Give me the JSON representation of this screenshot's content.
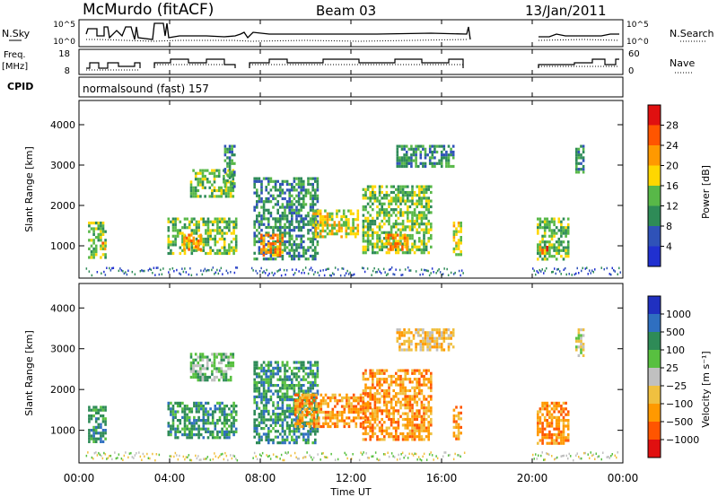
{
  "header": {
    "station": "McMurdo (fitACF)",
    "beam": "Beam 03",
    "date": "13/Jan/2011"
  },
  "sky_panel": {
    "left_label": "N.Sky",
    "right_label": "N.Search",
    "left_ticks": [
      "10^5",
      "10^0"
    ],
    "right_ticks": [
      "10^5",
      "10^0"
    ]
  },
  "freq_panel": {
    "left_label_line1": "Freq.",
    "left_label_line2": "[MHz]",
    "right_label": "Nave",
    "left_ticks": [
      "18",
      "8"
    ],
    "right_ticks": [
      "60",
      "0"
    ]
  },
  "cpid": {
    "label": "CPID",
    "program": "normalsound (fast) 157"
  },
  "colors": {
    "power": [
      "#2030d0",
      "#2f52b8",
      "#2e8b57",
      "#58b848",
      "#ffd700",
      "#ff9900",
      "#ff5500",
      "#e01010"
    ],
    "velocity": [
      "#e01010",
      "#ff5500",
      "#ff9900",
      "#f0c040",
      "#c0c0c0",
      "#58c040",
      "#2e8b57",
      "#2f6fc0",
      "#2030c0"
    ]
  },
  "chart_data": [
    {
      "type": "heatmap",
      "name": "power",
      "ylabel": "Slant Range [km]",
      "yticks": [
        "1000",
        "2000",
        "3000",
        "4000"
      ],
      "ylim": [
        200,
        4600
      ],
      "xlim": [
        0,
        24
      ],
      "xticks": [
        "00:00",
        "04:00",
        "08:00",
        "12:00",
        "16:00",
        "20:00",
        "00:00"
      ],
      "colorbar_label": "Power [dB]",
      "colorbar_ticks": [
        "4",
        "8",
        "12",
        "16",
        "20",
        "24",
        "28"
      ],
      "colorbar_range": [
        0,
        32
      ],
      "regions": [
        {
          "t0": 0.4,
          "t1": 1.2,
          "r0": 700,
          "r1": 1600,
          "level": 3
        },
        {
          "t0": 1.0,
          "t1": 1.2,
          "r0": 900,
          "r1": 1100,
          "level": 5
        },
        {
          "t0": 3.9,
          "t1": 6.9,
          "r0": 800,
          "r1": 1700,
          "level": 3
        },
        {
          "t0": 4.6,
          "t1": 5.4,
          "r0": 900,
          "r1": 1300,
          "level": 5
        },
        {
          "t0": 4.9,
          "t1": 6.8,
          "r0": 2200,
          "r1": 2900,
          "level": 3
        },
        {
          "t0": 6.4,
          "t1": 6.9,
          "r0": 2500,
          "r1": 3500,
          "level": 2
        },
        {
          "t0": 7.7,
          "t1": 10.5,
          "r0": 700,
          "r1": 2700,
          "level": 2
        },
        {
          "t0": 8.0,
          "t1": 9.0,
          "r0": 800,
          "r1": 1300,
          "level": 5
        },
        {
          "t0": 10.3,
          "t1": 12.3,
          "r0": 1200,
          "r1": 1900,
          "level": 4
        },
        {
          "t0": 12.5,
          "t1": 15.5,
          "r0": 800,
          "r1": 2500,
          "level": 3
        },
        {
          "t0": 13.5,
          "t1": 14.5,
          "r0": 900,
          "r1": 1300,
          "level": 5
        },
        {
          "t0": 14.0,
          "t1": 16.5,
          "r0": 3000,
          "r1": 3500,
          "level": 2
        },
        {
          "t0": 16.5,
          "t1": 16.9,
          "r0": 800,
          "r1": 1600,
          "level": 4
        },
        {
          "t0": 20.2,
          "t1": 21.6,
          "r0": 700,
          "r1": 1700,
          "level": 3
        },
        {
          "t0": 20.3,
          "t1": 20.7,
          "r0": 800,
          "r1": 1000,
          "level": 6
        },
        {
          "t0": 21.9,
          "t1": 22.3,
          "r0": 2800,
          "r1": 3500,
          "level": 2
        }
      ]
    },
    {
      "type": "heatmap",
      "name": "velocity",
      "ylabel": "Slant Range [km]",
      "yticks": [
        "1000",
        "2000",
        "3000",
        "4000"
      ],
      "ylim": [
        200,
        4600
      ],
      "xlim": [
        0,
        24
      ],
      "xticks": [
        "00:00",
        "04:00",
        "08:00",
        "12:00",
        "16:00",
        "20:00",
        "00:00"
      ],
      "xlabel": "Time UT",
      "colorbar_label": "Velocity [m s⁻¹]",
      "colorbar_ticks": [
        "1000",
        "500",
        "100",
        "25",
        "−25",
        "−100",
        "−500",
        "−1000"
      ],
      "regions": [
        {
          "t0": 0.4,
          "t1": 1.2,
          "r0": 700,
          "r1": 1600,
          "level": 6
        },
        {
          "t0": 3.9,
          "t1": 6.9,
          "r0": 800,
          "r1": 1700,
          "level": 6
        },
        {
          "t0": 4.9,
          "t1": 6.8,
          "r0": 2200,
          "r1": 2900,
          "level": 5
        },
        {
          "t0": 7.7,
          "t1": 10.5,
          "r0": 700,
          "r1": 2700,
          "level": 6
        },
        {
          "t0": 9.5,
          "t1": 13.0,
          "r0": 1100,
          "r1": 1900,
          "level": 2
        },
        {
          "t0": 12.5,
          "t1": 15.5,
          "r0": 800,
          "r1": 2500,
          "level": 2
        },
        {
          "t0": 14.0,
          "t1": 16.5,
          "r0": 3000,
          "r1": 3500,
          "level": 3
        },
        {
          "t0": 16.5,
          "t1": 16.9,
          "r0": 800,
          "r1": 1600,
          "level": 2
        },
        {
          "t0": 20.2,
          "t1": 21.6,
          "r0": 700,
          "r1": 1700,
          "level": 2
        },
        {
          "t0": 21.9,
          "t1": 22.3,
          "r0": 2800,
          "r1": 3500,
          "level": 4
        }
      ]
    }
  ]
}
